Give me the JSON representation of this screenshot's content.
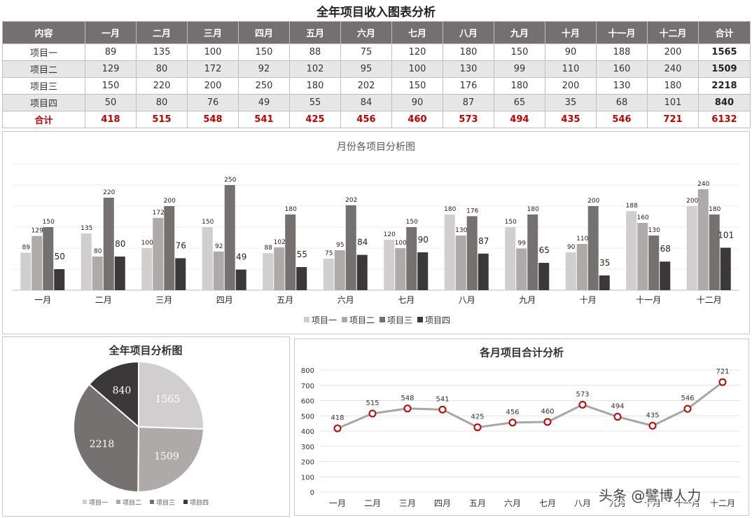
{
  "title": "全年项目收入图表分析",
  "table": {
    "header": [
      "内容",
      "一月",
      "二月",
      "三月",
      "四月",
      "五月",
      "六月",
      "七月",
      "八月",
      "九月",
      "十月",
      "十一月",
      "十二月",
      "合计"
    ],
    "rows": [
      {
        "name": "项目一",
        "values": [
          "89",
          "135",
          "100",
          "150",
          "88",
          "75",
          "120",
          "180",
          "150",
          "90",
          "188",
          "200"
        ],
        "total": "1565"
      },
      {
        "name": "项目二",
        "values": [
          "129",
          "80",
          "172",
          "92",
          "102",
          "95",
          "100",
          "130",
          "99",
          "110",
          "160",
          "240"
        ],
        "total": "1509"
      },
      {
        "name": "项目三",
        "values": [
          "150",
          "220",
          "200",
          "250",
          "180",
          "202",
          "150",
          "176",
          "180",
          "200",
          "130",
          "180"
        ],
        "total": "2218"
      },
      {
        "name": "项目四",
        "values": [
          "50",
          "80",
          "76",
          "49",
          "55",
          "84",
          "90",
          "87",
          "65",
          "35",
          "68",
          "101"
        ],
        "total": "840"
      }
    ],
    "total_row": {
      "name": "合计",
      "values": [
        "418",
        "515",
        "548",
        "541",
        "425",
        "456",
        "460",
        "573",
        "494",
        "435",
        "546",
        "721"
      ],
      "total": "6132"
    }
  },
  "colors": {
    "p1": "#d0cece",
    "p2": "#aeaaaa",
    "p3": "#767171",
    "p4": "#3a3838",
    "line": "#a6a6a6",
    "marker": "#c00000",
    "header": "#757070",
    "total_text": "#c00000"
  },
  "chart_data": [
    {
      "type": "bar",
      "title": "月份各项目分析图",
      "categories": [
        "一月",
        "二月",
        "三月",
        "四月",
        "五月",
        "六月",
        "七月",
        "八月",
        "九月",
        "十月",
        "十一月",
        "十二月"
      ],
      "series": [
        {
          "name": "项目一",
          "values": [
            89,
            135,
            100,
            150,
            88,
            75,
            120,
            180,
            150,
            90,
            188,
            200
          ]
        },
        {
          "name": "项目二",
          "values": [
            129,
            80,
            172,
            92,
            102,
            95,
            100,
            130,
            99,
            110,
            160,
            240
          ]
        },
        {
          "name": "项目三",
          "values": [
            150,
            220,
            200,
            250,
            180,
            202,
            150,
            176,
            180,
            200,
            130,
            180
          ]
        },
        {
          "name": "项目四",
          "values": [
            50,
            80,
            76,
            49,
            55,
            84,
            90,
            87,
            65,
            35,
            68,
            101
          ]
        }
      ],
      "ylim": [
        0,
        300
      ],
      "legend": "bottom",
      "grid": true
    },
    {
      "type": "pie",
      "title": "全年项目分析图",
      "labels": [
        "项目一",
        "项目二",
        "项目三",
        "项目四"
      ],
      "values": [
        1565,
        1509,
        2218,
        840
      ],
      "legend": "bottom"
    },
    {
      "type": "line",
      "title": "各月项目合计分析",
      "categories": [
        "一月",
        "二月",
        "三月",
        "四月",
        "五月",
        "六月",
        "七月",
        "八月",
        "九月",
        "十月",
        "十一月",
        "十二月"
      ],
      "values": [
        418,
        515,
        548,
        541,
        425,
        456,
        460,
        573,
        494,
        435,
        546,
        721
      ],
      "ylim": [
        0,
        800
      ],
      "yticks": [
        "0",
        "100",
        "200",
        "300",
        "400",
        "500",
        "600",
        "700",
        "800"
      ],
      "grid": true
    }
  ],
  "watermark": "头条 @譬博人力"
}
